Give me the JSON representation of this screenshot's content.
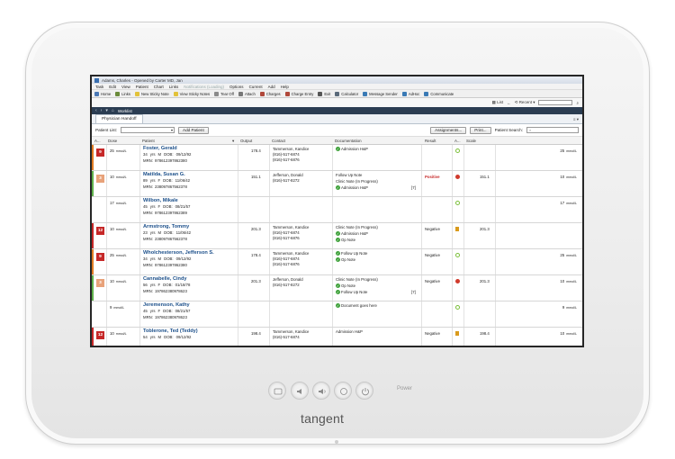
{
  "device": {
    "brand": "tangent",
    "power_label": "Power"
  },
  "window": {
    "title": "Adams, Charles - Opened by Carter MD, Jan"
  },
  "menu": [
    "Task",
    "Edit",
    "View",
    "Patient",
    "Chart",
    "Links",
    "Notifications (Loading)",
    "Options",
    "Current",
    "Add",
    "Help"
  ],
  "toolbar": [
    {
      "label": "Home",
      "color": "#4a78b5"
    },
    {
      "label": "Links",
      "color": "#6a8a3a"
    },
    {
      "label": "New Sticky Note",
      "color": "#e2c23a"
    },
    {
      "label": "View Sticky Notes",
      "color": "#e2c23a"
    },
    {
      "label": "Tear Off",
      "color": "#8a8a8a"
    },
    {
      "label": "Attach",
      "color": "#777777"
    },
    {
      "label": "Charges",
      "color": "#b0483a"
    },
    {
      "label": "Charge Entry",
      "color": "#b0483a"
    },
    {
      "label": "Exit",
      "color": "#555555"
    },
    {
      "label": "Calculator",
      "color": "#5a6a7a"
    },
    {
      "label": "Message Sender",
      "color": "#3a7ab5"
    },
    {
      "label": "AdHoc",
      "color": "#3a7ab5"
    },
    {
      "label": "Communicate",
      "color": "#3a7ab5"
    }
  ],
  "nav": {
    "list_label": "List",
    "recent_label": "Recent"
  },
  "breadcrumb": {
    "worklist": "Worklist"
  },
  "tab": {
    "label": "Physician Handoff"
  },
  "controls": {
    "patient_list_label": "Patient List:",
    "add_patient": "Add Patient",
    "assignments": "Assignments...",
    "print": "Print...",
    "patient_search_label": "Patient Search:"
  },
  "columns": [
    "A...",
    "Dose",
    "Patient",
    "Output",
    "Contact",
    "Documentation",
    "Result",
    "A...",
    "Scale"
  ],
  "patients": [
    {
      "acuity": "9",
      "acuity_color": "#c62828",
      "indicator_color": "#e07b22",
      "dose": "25",
      "dose_unit": "mmol/L",
      "name": "Foster, Gerald",
      "age": "34",
      "age_unit": "yrs",
      "sex": "M",
      "dob_label": "DOB:",
      "dob": "09/12/92",
      "mrn_label": "MRN:",
      "mrn": "978612397862380",
      "output": "178.4",
      "contact_name": "Tammerson, Kandice",
      "phone1": "(816)-517-6874",
      "phone2": "(816)-517-6876",
      "docs": [
        "Admission H&P"
      ],
      "doc_checks": [
        true
      ],
      "doc_count": "",
      "result": "",
      "result_icon": "ok",
      "scale": "",
      "right_value": "25",
      "right_unit": "mmol/L"
    },
    {
      "acuity": "3",
      "acuity_color": "#e8a27a",
      "indicator_color": "#5fb04a",
      "dose": "10",
      "dose_unit": "mmol/L",
      "name": "Matilda, Susan G.",
      "age": "89",
      "age_unit": "yrs",
      "sex": "F",
      "dob_label": "DOB:",
      "dob": "11/06/42",
      "mrn_label": "MRN:",
      "mrn": "238097867562378",
      "output": "151.1",
      "contact_name": "Jefferson, Donald",
      "phone1": "(816)-517-8272",
      "phone2": "",
      "docs": [
        "Follow Up Note",
        "Clinic Note (In Progress)",
        "Admission H&P"
      ],
      "doc_checks": [
        false,
        false,
        true
      ],
      "doc_count": "[7]",
      "result": "Positive",
      "result_icon": "crit",
      "scale": "151.1",
      "right_value": "10",
      "right_unit": "mmol/L"
    },
    {
      "acuity": "",
      "acuity_color": "",
      "indicator_color": "",
      "dose": "17",
      "dose_unit": "mmol/L",
      "name": "Wilbon, Mikale",
      "age": "45",
      "age_unit": "yrs",
      "sex": "F",
      "dob_label": "DOB:",
      "dob": "08/21/57",
      "mrn_label": "MRN:",
      "mrn": "978612397862389",
      "output": "",
      "contact_name": "",
      "phone1": "",
      "phone2": "",
      "docs": [],
      "doc_checks": [],
      "doc_count": "",
      "result": "",
      "result_icon": "ok",
      "scale": "",
      "right_value": "17",
      "right_unit": "mmol/L"
    },
    {
      "acuity": "12",
      "acuity_color": "#c62828",
      "indicator_color": "#c62828",
      "dose": "10",
      "dose_unit": "mmol/L",
      "name": "Armstrong, Tommy",
      "age": "23",
      "age_unit": "yrs",
      "sex": "M",
      "dob_label": "DOB:",
      "dob": "11/06/42",
      "mrn_label": "MRN:",
      "mrn": "238097867562378",
      "output": "201.3",
      "contact_name": "Tammerson, Kandice",
      "phone1": "(816)-517-6874",
      "phone2": "(816)-517-6876",
      "docs": [
        "Clinic Note (In Progress)",
        "Admission H&P",
        "Op Note"
      ],
      "doc_checks": [
        false,
        true,
        true
      ],
      "doc_count": "",
      "result": "Negative",
      "result_icon": "warn",
      "scale": "201.3",
      "right_value": "",
      "right_unit": ""
    },
    {
      "acuity": "9",
      "acuity_color": "#c62828",
      "indicator_color": "#e07b22",
      "dose": "25",
      "dose_unit": "mmol/L",
      "name": "Wholchesterson, Jefferson S.",
      "age": "34",
      "age_unit": "yrs",
      "sex": "M",
      "dob_label": "DOB:",
      "dob": "09/12/92",
      "mrn_label": "MRN:",
      "mrn": "978612397862380",
      "output": "178.4",
      "contact_name": "Tammerson, Kandice",
      "phone1": "(816)-517-6874",
      "phone2": "(816)-517-6876",
      "docs": [
        "Follow Up Note",
        "Op Note"
      ],
      "doc_checks": [
        true,
        true
      ],
      "doc_count": "",
      "result": "Negative",
      "result_icon": "ok",
      "scale": "",
      "right_value": "25",
      "right_unit": "mmol/L"
    },
    {
      "acuity": "3",
      "acuity_color": "#e8a27a",
      "indicator_color": "#5fb04a",
      "dose": "10",
      "dose_unit": "mmol/L",
      "name": "Cannabelle, Cindy",
      "age": "56",
      "age_unit": "yrs",
      "sex": "F",
      "dob_label": "DOB:",
      "dob": "01/18/78",
      "mrn_label": "MRN:",
      "mrn": "197862380978623",
      "output": "201.3",
      "contact_name": "Jefferson, Donald",
      "phone1": "(816)-517-8272",
      "phone2": "",
      "docs": [
        "Clinic Note (In Progress)",
        "Op Note",
        "Follow Up Note"
      ],
      "doc_checks": [
        false,
        true,
        true
      ],
      "doc_count": "[7]",
      "result": "Negative",
      "result_icon": "crit",
      "scale": "201.3",
      "right_value": "10",
      "right_unit": "mmol/L"
    },
    {
      "acuity": "",
      "acuity_color": "",
      "indicator_color": "",
      "dose": "9",
      "dose_unit": "mmol/L",
      "name": "Jeremenson, Kathy",
      "age": "45",
      "age_unit": "yrs",
      "sex": "F",
      "dob_label": "DOB:",
      "dob": "08/21/57",
      "mrn_label": "MRN:",
      "mrn": "197862380978623",
      "output": "",
      "contact_name": "",
      "phone1": "",
      "phone2": "",
      "docs": [
        "Document goes here"
      ],
      "doc_checks": [
        true
      ],
      "doc_count": "",
      "result": "",
      "result_icon": "ok",
      "scale": "",
      "right_value": "9",
      "right_unit": "mmol/L"
    },
    {
      "acuity": "12",
      "acuity_color": "#c62828",
      "indicator_color": "#c62828",
      "dose": "10",
      "dose_unit": "mmol/L",
      "name": "Toblerone, Ted (Teddy)",
      "age": "54",
      "age_unit": "yrs",
      "sex": "M",
      "dob_label": "DOB:",
      "dob": "09/12/92",
      "mrn_label": "",
      "mrn": "",
      "output": "198.4",
      "contact_name": "Tammerson, Kandice",
      "phone1": "(816)-517-6874",
      "phone2": "",
      "docs": [
        "Admission H&P"
      ],
      "doc_checks": [
        false
      ],
      "doc_count": "",
      "result": "Negative",
      "result_icon": "warn",
      "scale": "198.4",
      "right_value": "10",
      "right_unit": "mmol/L"
    }
  ]
}
